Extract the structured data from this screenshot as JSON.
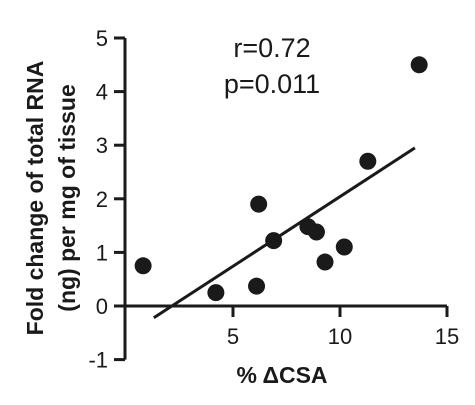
{
  "chart_data": {
    "type": "scatter",
    "xlabel": "% ΔCSA",
    "ylabel_lines": [
      "Fold change of total RNA",
      "(ng) per mg of tissue"
    ],
    "xlim": [
      0,
      15
    ],
    "ylim": [
      -1,
      5
    ],
    "x_ticks": [
      5,
      10,
      15
    ],
    "y_ticks": [
      -1,
      0,
      1,
      2,
      3,
      4,
      5
    ],
    "grid": false,
    "annotations": [
      "r=0.72",
      "p=0.011"
    ],
    "points": [
      {
        "x": 0.8,
        "y": 0.75
      },
      {
        "x": 4.2,
        "y": 0.25
      },
      {
        "x": 6.1,
        "y": 0.37
      },
      {
        "x": 6.2,
        "y": 1.9
      },
      {
        "x": 6.9,
        "y": 1.22
      },
      {
        "x": 8.5,
        "y": 1.48
      },
      {
        "x": 8.9,
        "y": 1.38
      },
      {
        "x": 9.3,
        "y": 0.82
      },
      {
        "x": 10.2,
        "y": 1.1
      },
      {
        "x": 11.3,
        "y": 2.7
      },
      {
        "x": 13.7,
        "y": 4.5
      }
    ],
    "fit_line": {
      "x": [
        1.3,
        13.5
      ],
      "y": [
        -0.22,
        2.95
      ]
    }
  }
}
